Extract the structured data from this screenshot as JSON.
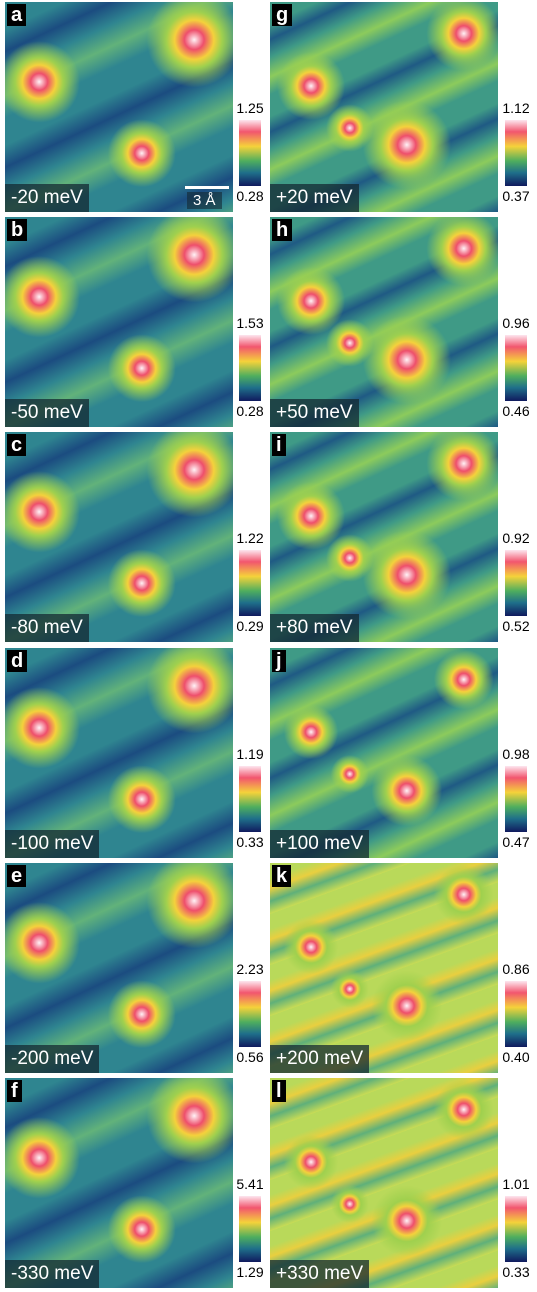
{
  "scale_bar": "3 Å",
  "panels": [
    {
      "letter": "a",
      "energy": "-20 meV",
      "cbar_max": "1.25",
      "cbar_min": "0.28"
    },
    {
      "letter": "b",
      "energy": "-50 meV",
      "cbar_max": "1.53",
      "cbar_min": "0.28"
    },
    {
      "letter": "c",
      "energy": "-80 meV",
      "cbar_max": "1.22",
      "cbar_min": "0.29"
    },
    {
      "letter": "d",
      "energy": "-100 meV",
      "cbar_max": "1.19",
      "cbar_min": "0.33"
    },
    {
      "letter": "e",
      "energy": "-200 meV",
      "cbar_max": "2.23",
      "cbar_min": "0.56"
    },
    {
      "letter": "f",
      "energy": "-330 meV",
      "cbar_max": "5.41",
      "cbar_min": "1.29"
    },
    {
      "letter": "g",
      "energy": "+20 meV",
      "cbar_max": "1.12",
      "cbar_min": "0.37"
    },
    {
      "letter": "h",
      "energy": "+50 meV",
      "cbar_max": "0.96",
      "cbar_min": "0.46"
    },
    {
      "letter": "i",
      "energy": "+80 meV",
      "cbar_max": "0.92",
      "cbar_min": "0.52"
    },
    {
      "letter": "j",
      "energy": "+100 meV",
      "cbar_max": "0.98",
      "cbar_min": "0.47"
    },
    {
      "letter": "k",
      "energy": "+200 meV",
      "cbar_max": "0.86",
      "cbar_min": "0.40"
    },
    {
      "letter": "l",
      "energy": "+330 meV",
      "cbar_max": "1.01",
      "cbar_min": "0.33"
    }
  ]
}
